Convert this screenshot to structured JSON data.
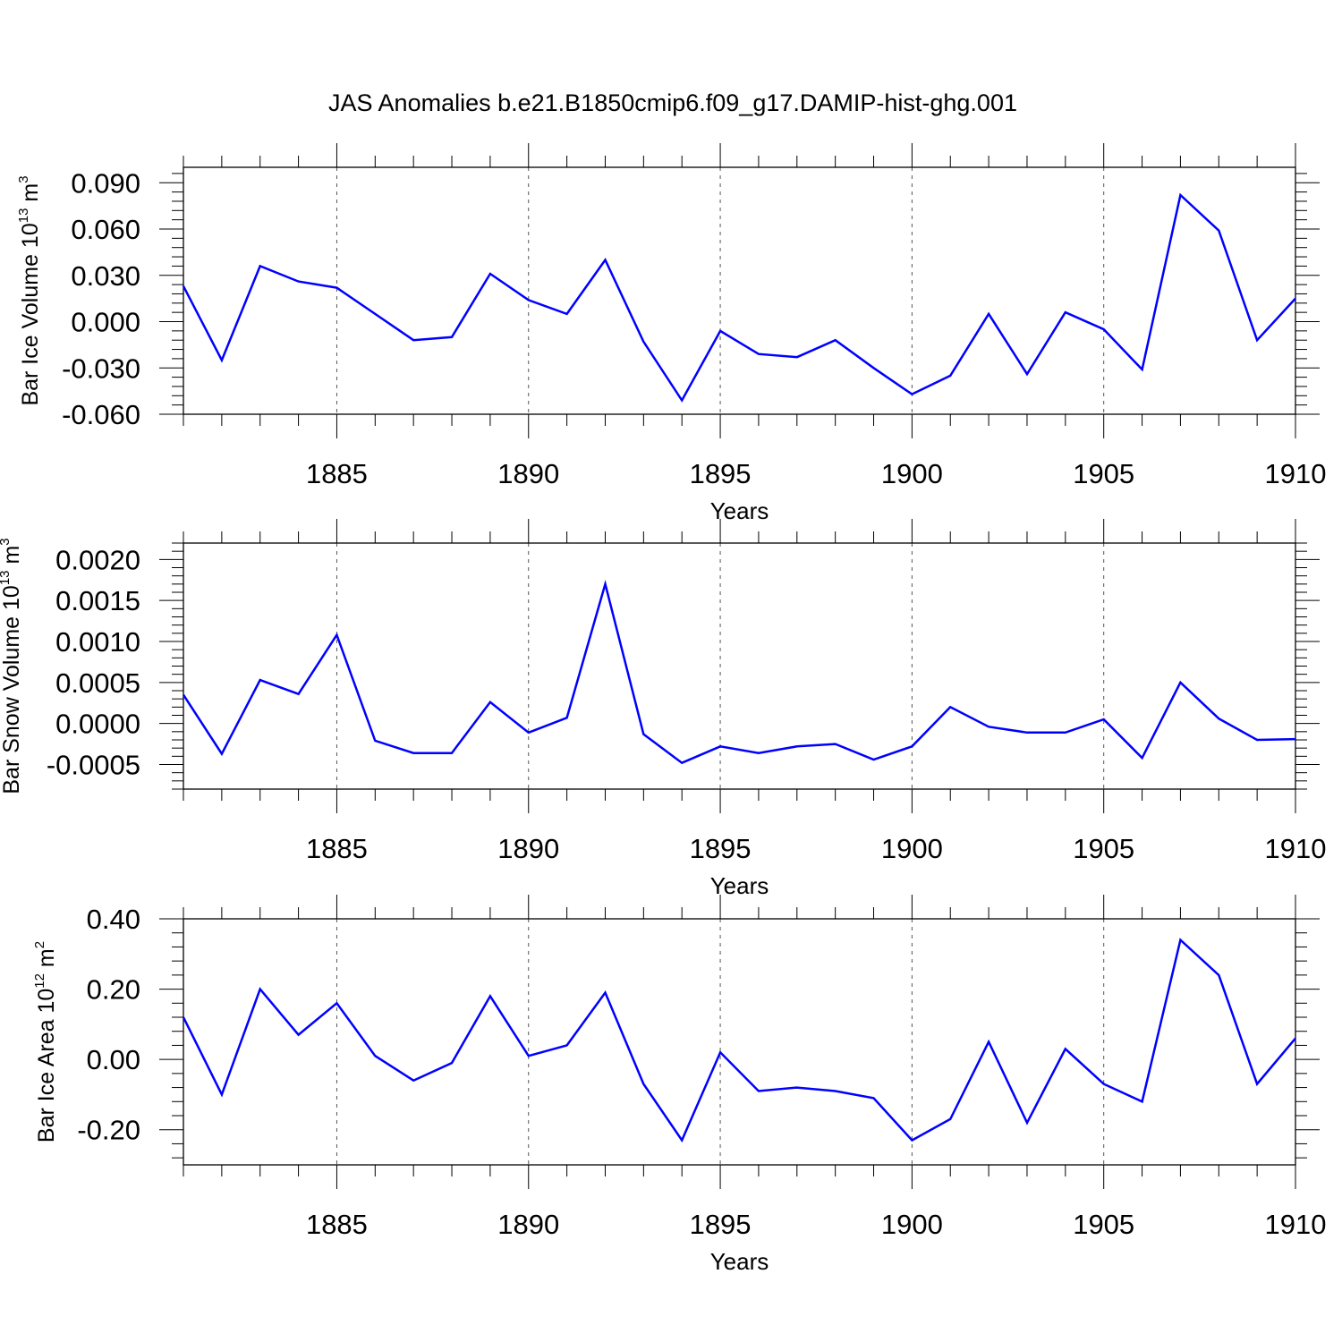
{
  "title": "JAS Anomalies b.e21.B1850cmip6.f09_g17.DAMIP-hist-ghg.001",
  "colors": {
    "line": "#0000ff",
    "axis": "#000000",
    "grid": "#555555"
  },
  "chart_data": [
    {
      "type": "line",
      "xlabel": "Years",
      "ylabel": {
        "text": "Bar Ice Volume 10",
        "exponent": "13",
        "unit": "m",
        "unit_exponent": "3"
      },
      "xlim": [
        1881,
        1910
      ],
      "ylim": [
        -0.06,
        0.1
      ],
      "x_ticks": [
        "1885",
        "1890",
        "1895",
        "1900",
        "1905",
        "1910"
      ],
      "y_ticks": [
        "0.090",
        "0.060",
        "0.030",
        "0.000",
        "-0.030",
        "-0.060"
      ],
      "grid": "x dashed at major ticks",
      "x": [
        1881,
        1882,
        1883,
        1884,
        1885,
        1886,
        1887,
        1888,
        1889,
        1890,
        1891,
        1892,
        1893,
        1894,
        1895,
        1896,
        1897,
        1898,
        1899,
        1900,
        1901,
        1902,
        1903,
        1904,
        1905,
        1906,
        1907,
        1908,
        1909,
        1910
      ],
      "series": [
        {
          "values": [
            0.023,
            -0.025,
            0.036,
            0.026,
            0.022,
            0.005,
            -0.012,
            -0.01,
            0.031,
            0.014,
            0.005,
            0.04,
            -0.013,
            -0.051,
            -0.006,
            -0.021,
            -0.023,
            -0.012,
            -0.03,
            -0.047,
            -0.035,
            0.005,
            -0.034,
            0.006,
            -0.005,
            -0.031,
            0.082,
            0.059,
            -0.012,
            0.015
          ]
        }
      ]
    },
    {
      "type": "line",
      "xlabel": "Years",
      "ylabel": {
        "text": "Bar Snow Volume 10",
        "exponent": "13",
        "unit": "m",
        "unit_exponent": "3"
      },
      "xlim": [
        1881,
        1910
      ],
      "ylim": [
        -0.0008,
        0.0022
      ],
      "x_ticks": [
        "1885",
        "1890",
        "1895",
        "1900",
        "1905",
        "1910"
      ],
      "y_ticks": [
        "0.0020",
        "0.0015",
        "0.0010",
        "0.0005",
        "0.0000",
        "-0.0005"
      ],
      "grid": "x dashed at major ticks",
      "x": [
        1881,
        1882,
        1883,
        1884,
        1885,
        1886,
        1887,
        1888,
        1889,
        1890,
        1891,
        1892,
        1893,
        1894,
        1895,
        1896,
        1897,
        1898,
        1899,
        1900,
        1901,
        1902,
        1903,
        1904,
        1905,
        1906,
        1907,
        1908,
        1909,
        1910
      ],
      "series": [
        {
          "values": [
            0.00035,
            -0.00037,
            0.00053,
            0.00036,
            0.00108,
            -0.00021,
            -0.00036,
            -0.00036,
            0.00026,
            -0.00011,
            7e-05,
            0.0017,
            -0.00013,
            -0.00048,
            -0.00028,
            -0.00036,
            -0.00028,
            -0.00025,
            -0.00044,
            -0.00028,
            0.0002,
            -4e-05,
            -0.00011,
            -0.00011,
            5e-05,
            -0.00042,
            0.0005,
            6e-05,
            -0.0002,
            -0.00019
          ]
        }
      ]
    },
    {
      "type": "line",
      "xlabel": "Years",
      "ylabel": {
        "text": "Bar Ice Area 10",
        "exponent": "12",
        "unit": "m",
        "unit_exponent": "2"
      },
      "xlim": [
        1881,
        1910
      ],
      "ylim": [
        -0.3,
        0.4
      ],
      "x_ticks": [
        "1885",
        "1890",
        "1895",
        "1900",
        "1905",
        "1910"
      ],
      "y_ticks": [
        "0.40",
        "0.20",
        "0.00",
        "-0.20"
      ],
      "grid": "x dashed at major ticks",
      "x": [
        1881,
        1882,
        1883,
        1884,
        1885,
        1886,
        1887,
        1888,
        1889,
        1890,
        1891,
        1892,
        1893,
        1894,
        1895,
        1896,
        1897,
        1898,
        1899,
        1900,
        1901,
        1902,
        1903,
        1904,
        1905,
        1906,
        1907,
        1908,
        1909,
        1910
      ],
      "series": [
        {
          "values": [
            0.12,
            -0.1,
            0.2,
            0.07,
            0.16,
            0.01,
            -0.06,
            -0.01,
            0.18,
            0.01,
            0.04,
            0.19,
            -0.07,
            -0.23,
            0.02,
            -0.09,
            -0.08,
            -0.09,
            -0.11,
            -0.23,
            -0.17,
            0.05,
            -0.18,
            0.03,
            -0.07,
            -0.12,
            0.34,
            0.24,
            -0.07,
            0.06
          ]
        }
      ]
    }
  ]
}
